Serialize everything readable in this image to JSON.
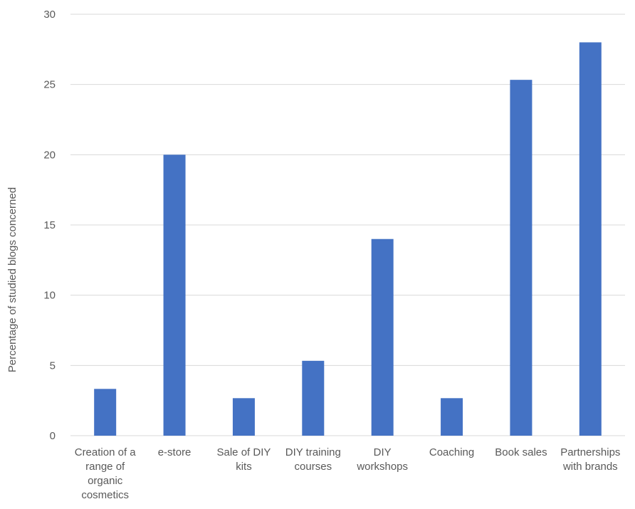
{
  "chart_data": {
    "type": "bar",
    "title": "",
    "xlabel": "",
    "ylabel": "Percentage of studied blogs concerned",
    "ylim": [
      0,
      30
    ],
    "y_ticks": [
      0,
      5,
      10,
      15,
      20,
      25,
      30
    ],
    "grid": true,
    "legend": "none",
    "bar_color": "#4472C4",
    "gridline_color": "#D9D9D9",
    "categories": [
      [
        "Creation of a",
        "range of",
        "organic",
        "cosmetics"
      ],
      [
        "e-store"
      ],
      [
        "Sale of DIY",
        "kits"
      ],
      [
        "DIY training",
        "courses"
      ],
      [
        "DIY",
        "workshops"
      ],
      [
        "Coaching"
      ],
      [
        "Book sales"
      ],
      [
        "Partnerships",
        "with brands"
      ]
    ],
    "values": [
      3.33,
      20,
      2.67,
      5.33,
      14,
      2.67,
      25.33,
      28
    ]
  }
}
